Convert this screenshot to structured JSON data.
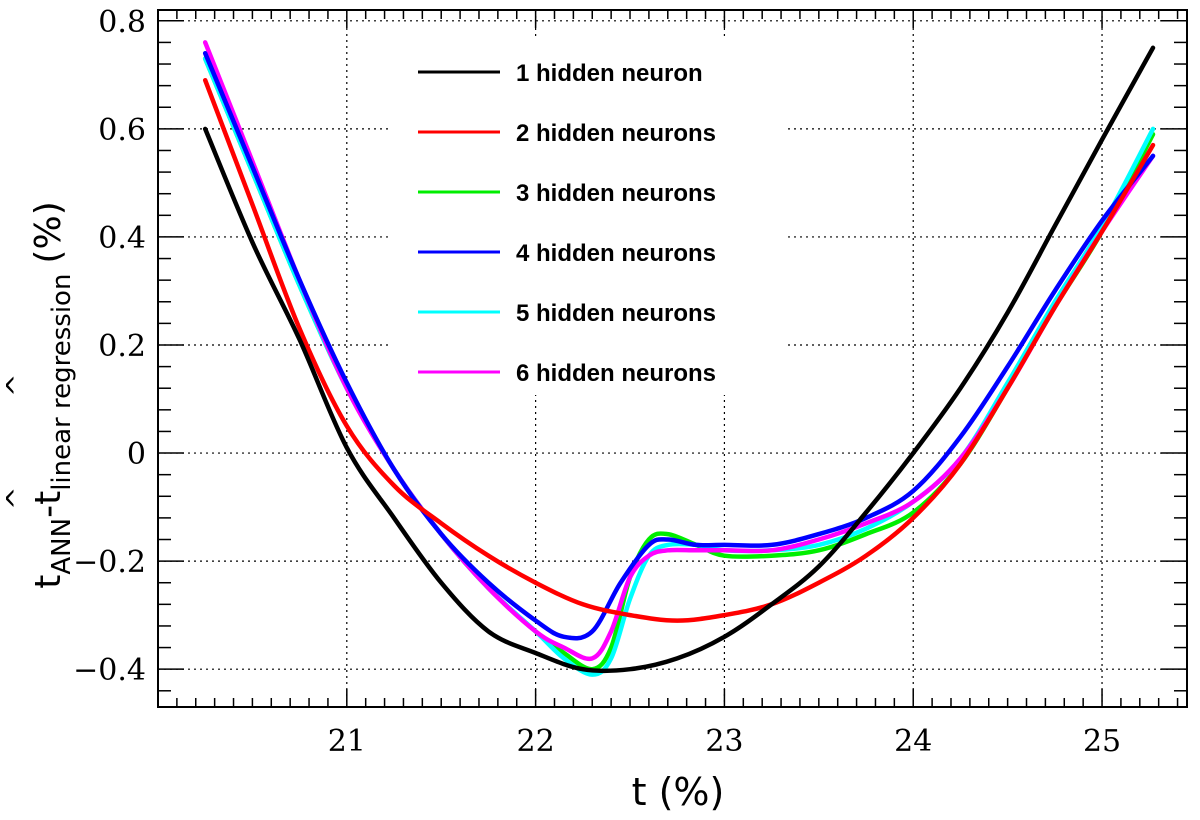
{
  "chart_data": {
    "type": "line",
    "title": "",
    "xlabel": "t (%)",
    "ylabel": {
      "hat": "^",
      "t1": "t",
      "sub1": "ANN",
      "dash": "-",
      "t2": "t",
      "sub2": "linear regression",
      "unit": "(%)"
    },
    "xlim": [
      20.0,
      25.45
    ],
    "ylim": [
      -0.47,
      0.82
    ],
    "xticks": [
      21,
      22,
      23,
      24,
      25
    ],
    "xtick_labels": [
      "21",
      "22",
      "23",
      "24",
      "25"
    ],
    "yticks": [
      -0.4,
      -0.2,
      0,
      0.2,
      0.4,
      0.6,
      0.8
    ],
    "ytick_labels": [
      "−0.4",
      "−0.2",
      "0",
      "0.2",
      "0.4",
      "0.6",
      "0.8"
    ],
    "grid": true,
    "legend_position": "top-center",
    "series": [
      {
        "name": "1 hidden neuron",
        "color": "#000000",
        "x": [
          20.25,
          20.5,
          20.75,
          21.0,
          21.25,
          21.5,
          21.75,
          22.0,
          22.25,
          22.5,
          22.75,
          23.0,
          23.25,
          23.5,
          23.75,
          24.0,
          24.25,
          24.5,
          24.75,
          25.0,
          25.27
        ],
        "y": [
          0.6,
          0.39,
          0.21,
          0.01,
          -0.12,
          -0.24,
          -0.33,
          -0.37,
          -0.4,
          -0.4,
          -0.38,
          -0.34,
          -0.28,
          -0.21,
          -0.11,
          0.0,
          0.12,
          0.26,
          0.42,
          0.58,
          0.75
        ]
      },
      {
        "name": "2 hidden neurons",
        "color": "#ff0000",
        "x": [
          20.25,
          20.5,
          20.75,
          21.0,
          21.25,
          21.5,
          21.75,
          22.0,
          22.25,
          22.5,
          22.75,
          23.0,
          23.25,
          23.5,
          23.75,
          24.0,
          24.25,
          24.5,
          24.75,
          25.0,
          25.27
        ],
        "y": [
          0.69,
          0.46,
          0.23,
          0.05,
          -0.06,
          -0.13,
          -0.19,
          -0.24,
          -0.28,
          -0.3,
          -0.31,
          -0.3,
          -0.28,
          -0.24,
          -0.19,
          -0.12,
          -0.02,
          0.12,
          0.27,
          0.41,
          0.57
        ]
      },
      {
        "name": "3 hidden neurons",
        "color": "#00ee00",
        "x": [
          20.25,
          20.5,
          20.75,
          21.0,
          21.25,
          21.5,
          21.75,
          22.0,
          22.15,
          22.3,
          22.4,
          22.5,
          22.6,
          22.7,
          22.85,
          23.0,
          23.25,
          23.5,
          23.75,
          24.0,
          24.25,
          24.5,
          24.75,
          25.0,
          25.27
        ],
        "y": [
          0.73,
          0.52,
          0.31,
          0.12,
          -0.03,
          -0.15,
          -0.25,
          -0.33,
          -0.37,
          -0.4,
          -0.36,
          -0.23,
          -0.16,
          -0.15,
          -0.17,
          -0.19,
          -0.19,
          -0.18,
          -0.15,
          -0.11,
          -0.02,
          0.12,
          0.27,
          0.41,
          0.59
        ]
      },
      {
        "name": "4 hidden neurons",
        "color": "#0000ff",
        "x": [
          20.25,
          20.5,
          20.75,
          21.0,
          21.25,
          21.5,
          21.75,
          22.0,
          22.15,
          22.3,
          22.45,
          22.6,
          22.7,
          22.85,
          23.0,
          23.25,
          23.5,
          23.75,
          24.0,
          24.25,
          24.5,
          24.75,
          25.0,
          25.27
        ],
        "y": [
          0.74,
          0.53,
          0.32,
          0.13,
          -0.03,
          -0.15,
          -0.24,
          -0.31,
          -0.34,
          -0.33,
          -0.24,
          -0.17,
          -0.16,
          -0.17,
          -0.17,
          -0.17,
          -0.15,
          -0.12,
          -0.07,
          0.03,
          0.16,
          0.3,
          0.43,
          0.55
        ]
      },
      {
        "name": "5 hidden neurons",
        "color": "#00ffff",
        "x": [
          20.25,
          20.5,
          20.75,
          21.0,
          21.25,
          21.5,
          21.75,
          22.0,
          22.15,
          22.3,
          22.4,
          22.5,
          22.6,
          22.7,
          22.85,
          23.0,
          23.25,
          23.5,
          23.75,
          24.0,
          24.25,
          24.5,
          24.75,
          25.0,
          25.27
        ],
        "y": [
          0.73,
          0.52,
          0.31,
          0.12,
          -0.03,
          -0.15,
          -0.25,
          -0.33,
          -0.38,
          -0.41,
          -0.38,
          -0.27,
          -0.19,
          -0.17,
          -0.17,
          -0.18,
          -0.18,
          -0.17,
          -0.14,
          -0.09,
          -0.01,
          0.13,
          0.28,
          0.42,
          0.6
        ]
      },
      {
        "name": "6 hidden neurons",
        "color": "#ff00ff",
        "x": [
          20.25,
          20.5,
          20.75,
          21.0,
          21.25,
          21.5,
          21.75,
          22.0,
          22.15,
          22.3,
          22.4,
          22.5,
          22.6,
          22.7,
          22.85,
          23.0,
          23.25,
          23.5,
          23.75,
          24.0,
          24.25,
          24.5,
          24.75,
          25.0,
          25.27
        ],
        "y": [
          0.76,
          0.54,
          0.32,
          0.12,
          -0.03,
          -0.15,
          -0.25,
          -0.33,
          -0.36,
          -0.38,
          -0.33,
          -0.23,
          -0.19,
          -0.18,
          -0.18,
          -0.18,
          -0.18,
          -0.16,
          -0.13,
          -0.09,
          -0.01,
          0.12,
          0.27,
          0.41,
          0.55
        ]
      }
    ]
  }
}
